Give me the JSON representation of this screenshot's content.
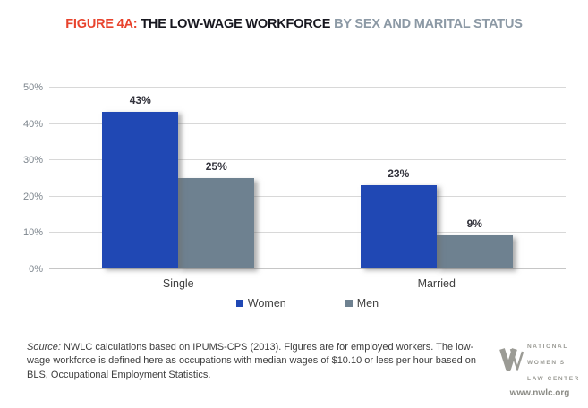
{
  "title": {
    "prefix": "FIGURE 4A: ",
    "main": "THE LOW-WAGE WORKFORCE ",
    "suffix": "BY SEX AND MARITAL STATUS"
  },
  "colors": {
    "title_prefix": "#e8432d",
    "title_main": "#17171f",
    "title_suffix": "#8c99a5",
    "women_bar": "#2048b4",
    "men_bar": "#6e8190",
    "gridline": "#d8d8d8"
  },
  "chart_data": {
    "type": "bar",
    "title": "FIGURE 4A: THE LOW-WAGE WORKFORCE BY SEX AND MARITAL STATUS",
    "categories": [
      "Single",
      "Married"
    ],
    "series": [
      {
        "name": "Women",
        "color": "#2048b4",
        "values": [
          43,
          23
        ]
      },
      {
        "name": "Men",
        "color": "#6e8190",
        "values": [
          25,
          9
        ]
      }
    ],
    "data_labels": [
      [
        "43%",
        "25%"
      ],
      [
        "23%",
        "9%"
      ]
    ],
    "ytick_values": [
      0,
      10,
      20,
      30,
      40,
      50
    ],
    "ytick_labels": [
      "0%",
      "10%",
      "20%",
      "30%",
      "40%",
      "50%"
    ],
    "ylim": [
      0,
      50
    ],
    "grid": true,
    "legend_position": "bottom",
    "xlabel": "",
    "ylabel": ""
  },
  "source": {
    "label": "Source:",
    "text": " NWLC calculations based on IPUMS-CPS (2013). Figures are for employed workers. The low-wage workforce is defined here as occupations with median wages of $10.10 or less per hour based on BLS, Occupational Employment Statistics."
  },
  "logo": {
    "name_lines": [
      "NATIONAL",
      "WOMEN'S",
      "LAW CENTER"
    ],
    "url": "www.nwlc.org"
  }
}
